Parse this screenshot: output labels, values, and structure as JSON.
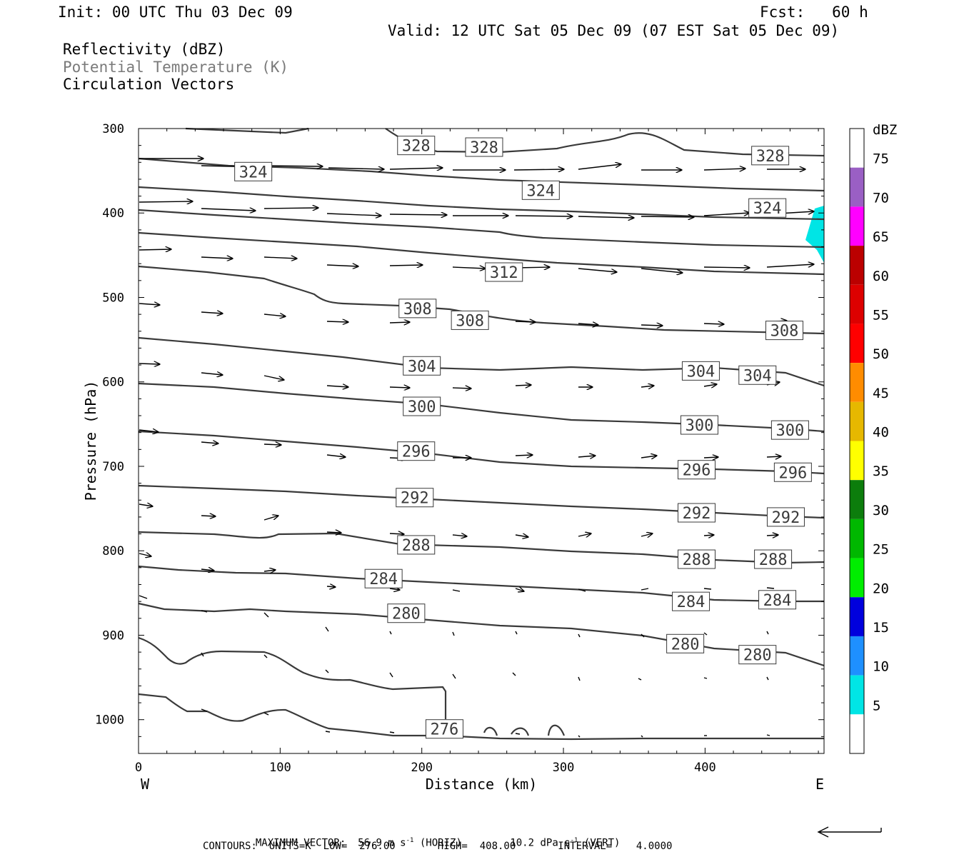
{
  "header": {
    "init": "Init: 00 UTC Thu 03 Dec 09",
    "fcst": "Fcst:   60 h",
    "valid": "Valid: 12 UTC Sat 05 Dec 09 (07 EST Sat 05 Dec 09)"
  },
  "fields": [
    {
      "label": "Reflectivity (dBZ)",
      "color": "#000000"
    },
    {
      "label": "Potential Temperature (K)",
      "color": "#7a7a7a"
    },
    {
      "label": "Circulation Vectors",
      "color": "#000000"
    }
  ],
  "chart_data": {
    "type": "cross-section",
    "xlabel": "Distance (km)",
    "ylabel": "Pressure (hPa)",
    "xlim": [
      0,
      484
    ],
    "ylim": [
      1040,
      300
    ],
    "xticks": [
      0,
      100,
      200,
      300,
      400
    ],
    "yticks": [
      300,
      400,
      500,
      600,
      700,
      800,
      900,
      1000
    ],
    "west_label": "W",
    "east_label": "E",
    "contour_labels": [
      {
        "value": "328",
        "x": 196,
        "p": 320
      },
      {
        "value": "328",
        "x": 244,
        "p": 322
      },
      {
        "value": "328",
        "x": 446,
        "p": 332
      },
      {
        "value": "324",
        "x": 81,
        "p": 351
      },
      {
        "value": "324",
        "x": 284,
        "p": 373
      },
      {
        "value": "324",
        "x": 444,
        "p": 394
      },
      {
        "value": "312",
        "x": 258,
        "p": 470
      },
      {
        "value": "308",
        "x": 197,
        "p": 513
      },
      {
        "value": "308",
        "x": 234,
        "p": 527
      },
      {
        "value": "308",
        "x": 456,
        "p": 539
      },
      {
        "value": "304",
        "x": 200,
        "p": 581
      },
      {
        "value": "304",
        "x": 397,
        "p": 587
      },
      {
        "value": "304",
        "x": 437,
        "p": 592
      },
      {
        "value": "300",
        "x": 200,
        "p": 629
      },
      {
        "value": "300",
        "x": 396,
        "p": 651
      },
      {
        "value": "300",
        "x": 460,
        "p": 657
      },
      {
        "value": "296",
        "x": 196,
        "p": 682
      },
      {
        "value": "296",
        "x": 394,
        "p": 704
      },
      {
        "value": "296",
        "x": 462,
        "p": 707
      },
      {
        "value": "292",
        "x": 195,
        "p": 737
      },
      {
        "value": "292",
        "x": 394,
        "p": 755
      },
      {
        "value": "292",
        "x": 457,
        "p": 760
      },
      {
        "value": "288",
        "x": 196,
        "p": 793
      },
      {
        "value": "288",
        "x": 394,
        "p": 810
      },
      {
        "value": "288",
        "x": 448,
        "p": 810
      },
      {
        "value": "284",
        "x": 173,
        "p": 833
      },
      {
        "value": "284",
        "x": 390,
        "p": 860
      },
      {
        "value": "284",
        "x": 451,
        "p": 858
      },
      {
        "value": "280",
        "x": 189,
        "p": 874
      },
      {
        "value": "280",
        "x": 386,
        "p": 910
      },
      {
        "value": "280",
        "x": 437,
        "p": 923
      },
      {
        "value": "276",
        "x": 216,
        "p": 1011
      }
    ],
    "colorbar": {
      "unit": "dBZ",
      "levels": [
        {
          "label": "75",
          "color": "#ffffff"
        },
        {
          "label": "70",
          "color": "#9a5fc4"
        },
        {
          "label": "65",
          "color": "#ff00ff"
        },
        {
          "label": "60",
          "color": "#bb0000"
        },
        {
          "label": "55",
          "color": "#dd0000"
        },
        {
          "label": "50",
          "color": "#ff0000"
        },
        {
          "label": "45",
          "color": "#ff8c00"
        },
        {
          "label": "40",
          "color": "#e6b800"
        },
        {
          "label": "35",
          "color": "#ffff00"
        },
        {
          "label": "30",
          "color": "#0c7d0c"
        },
        {
          "label": "25",
          "color": "#00b800"
        },
        {
          "label": "20",
          "color": "#00ee00"
        },
        {
          "label": "15",
          "color": "#0000dd"
        },
        {
          "label": "10",
          "color": "#1e90ff"
        },
        {
          "label": "5",
          "color": "#00e5e5"
        },
        {
          "label": "",
          "color": "#ffffff"
        }
      ]
    },
    "reflectivity_color": "#00e5e5",
    "contour_color": "#3a3a3a"
  },
  "footer": {
    "max_vector_label": "MAXIMUM VECTOR:",
    "horiz": "56.9 m s",
    "horiz_exp": "-1",
    "horiz_tag": "(HORIZ)",
    "vert": "10.2 dPa s",
    "vert_exp": "-1",
    "vert_tag": "(VERT)",
    "contours": "CONTOURS:  UNITS=K  LOW=  276.00       HIGH=  408.00       INTERVAL=    4.0000"
  }
}
